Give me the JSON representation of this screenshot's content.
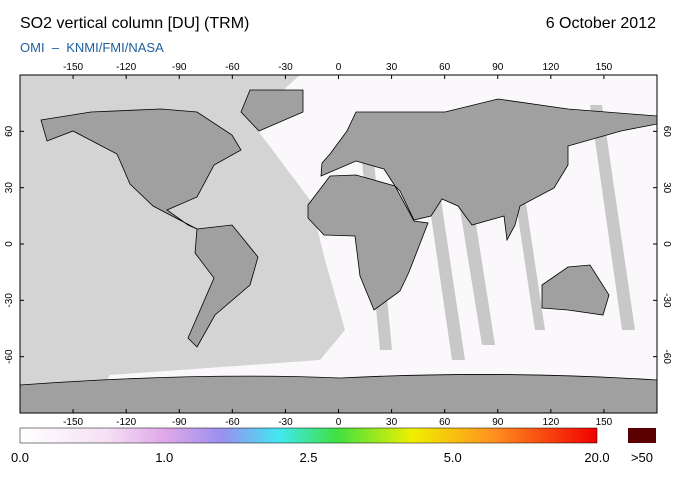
{
  "header": {
    "title": "SO2 vertical column [DU] (TRM)",
    "date": "6 October 2012",
    "subtitle": "OMI  –  KNMI/FMI/NASA"
  },
  "map": {
    "lon_ticks": [
      -150,
      -120,
      -90,
      -60,
      -30,
      0,
      30,
      60,
      90,
      120,
      150
    ],
    "lat_ticks": [
      60,
      30,
      0,
      -30,
      -60
    ]
  },
  "colorbar": {
    "labels": [
      "0.0",
      "1.0",
      "2.5",
      "5.0",
      "20.0"
    ],
    "overflow_label": ">50"
  }
}
